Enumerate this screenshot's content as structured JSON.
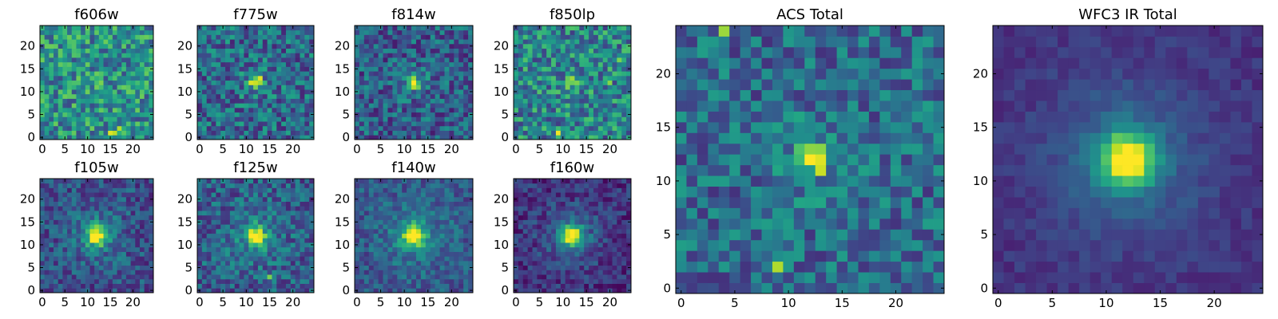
{
  "figure": {
    "colormap": "viridis"
  },
  "chart_data": [
    {
      "type": "heatmap",
      "title": "f606w",
      "grid_size": 25,
      "xticks": [
        0,
        5,
        10,
        15,
        20
      ],
      "yticks": [
        0,
        5,
        10,
        15,
        20
      ],
      "xlim": [
        -0.5,
        24.5
      ],
      "ylim": [
        -0.5,
        24.5
      ],
      "seed": 11,
      "noise": 0.55,
      "base": 0.5,
      "peak": [
        12,
        12
      ],
      "peak_amp": 0.05,
      "sigma": 1.0,
      "hot_pixels": [
        [
          15,
          1,
          0.95
        ],
        [
          16,
          1,
          0.9
        ],
        [
          17,
          2,
          0.88
        ],
        [
          13,
          12,
          0.8
        ]
      ]
    },
    {
      "type": "heatmap",
      "title": "f775w",
      "grid_size": 25,
      "xticks": [
        0,
        5,
        10,
        15,
        20
      ],
      "yticks": [
        0,
        5,
        10,
        15,
        20
      ],
      "xlim": [
        -0.5,
        24.5
      ],
      "ylim": [
        -0.5,
        24.5
      ],
      "seed": 23,
      "noise": 0.5,
      "base": 0.35,
      "peak": [
        12,
        12
      ],
      "peak_amp": 0.55,
      "sigma": 0.8,
      "hot_pixels": [
        [
          13,
          13,
          0.95
        ],
        [
          12,
          12,
          0.92
        ],
        [
          11,
          12,
          0.85
        ]
      ]
    },
    {
      "type": "heatmap",
      "title": "f814w",
      "grid_size": 25,
      "xticks": [
        0,
        5,
        10,
        15,
        20
      ],
      "yticks": [
        0,
        5,
        10,
        15,
        20
      ],
      "xlim": [
        -0.5,
        24.5
      ],
      "ylim": [
        -0.5,
        24.5
      ],
      "seed": 37,
      "noise": 0.45,
      "base": 0.3,
      "peak": [
        12,
        12
      ],
      "peak_amp": 0.65,
      "sigma": 0.8,
      "hot_pixels": [
        [
          12,
          12,
          0.97
        ],
        [
          12,
          11,
          0.88
        ],
        [
          12,
          13,
          0.85
        ]
      ]
    },
    {
      "type": "heatmap",
      "title": "f850lp",
      "grid_size": 25,
      "xticks": [
        0,
        5,
        10,
        15,
        20
      ],
      "yticks": [
        0,
        5,
        10,
        15,
        20
      ],
      "xlim": [
        -0.5,
        24.5
      ],
      "ylim": [
        -0.5,
        24.5
      ],
      "seed": 41,
      "noise": 0.55,
      "base": 0.45,
      "peak": [
        12,
        12
      ],
      "peak_amp": 0.15,
      "sigma": 1.0,
      "hot_pixels": [
        [
          9,
          1,
          0.98
        ],
        [
          12,
          13,
          0.85
        ],
        [
          20,
          12,
          0.82
        ],
        [
          22,
          17,
          0.8
        ],
        [
          13,
          12,
          0.8
        ]
      ]
    },
    {
      "type": "heatmap",
      "title": "f105w",
      "grid_size": 25,
      "xticks": [
        0,
        5,
        10,
        15,
        20
      ],
      "yticks": [
        0,
        5,
        10,
        15,
        20
      ],
      "xlim": [
        -0.5,
        24.5
      ],
      "ylim": [
        -0.5,
        24.5
      ],
      "seed": 53,
      "noise": 0.35,
      "base": 0.25,
      "peak": [
        12,
        12
      ],
      "peak_amp": 0.75,
      "sigma": 1.4,
      "hot_pixels": [
        [
          12,
          11,
          0.95
        ],
        [
          12,
          12,
          0.9
        ]
      ]
    },
    {
      "type": "heatmap",
      "title": "f125w",
      "grid_size": 25,
      "xticks": [
        0,
        5,
        10,
        15,
        20
      ],
      "yticks": [
        0,
        5,
        10,
        15,
        20
      ],
      "xlim": [
        -0.5,
        24.5
      ],
      "ylim": [
        -0.5,
        24.5
      ],
      "seed": 67,
      "noise": 0.4,
      "base": 0.3,
      "peak": [
        12,
        12
      ],
      "peak_amp": 0.65,
      "sigma": 1.4,
      "hot_pixels": [
        [
          13,
          13,
          0.95
        ],
        [
          12,
          12,
          0.88
        ],
        [
          15,
          3,
          0.8
        ]
      ]
    },
    {
      "type": "heatmap",
      "title": "f140w",
      "grid_size": 25,
      "xticks": [
        0,
        5,
        10,
        15,
        20
      ],
      "yticks": [
        0,
        5,
        10,
        15,
        20
      ],
      "xlim": [
        -0.5,
        24.5
      ],
      "ylim": [
        -0.5,
        24.5
      ],
      "seed": 79,
      "noise": 0.3,
      "base": 0.28,
      "peak": [
        12,
        12
      ],
      "peak_amp": 0.7,
      "sigma": 1.6,
      "hot_pixels": [
        [
          12,
          12,
          0.95
        ],
        [
          12,
          13,
          0.85
        ]
      ]
    },
    {
      "type": "heatmap",
      "title": "f160w",
      "grid_size": 25,
      "xticks": [
        0,
        5,
        10,
        15,
        20
      ],
      "yticks": [
        0,
        5,
        10,
        15,
        20
      ],
      "xlim": [
        -0.5,
        24.5
      ],
      "ylim": [
        -0.5,
        24.5
      ],
      "seed": 83,
      "noise": 0.28,
      "base": 0.15,
      "peak": [
        12,
        12
      ],
      "peak_amp": 0.85,
      "sigma": 1.5,
      "hot_pixels": [
        [
          12,
          12,
          0.97
        ],
        [
          13,
          12,
          0.9
        ]
      ]
    },
    {
      "type": "heatmap",
      "title": "ACS Total",
      "grid_size": 25,
      "xticks": [
        0,
        5,
        10,
        15,
        20
      ],
      "yticks": [
        0,
        5,
        10,
        15,
        20
      ],
      "xlim": [
        -0.5,
        24.5
      ],
      "ylim": [
        -0.5,
        24.5
      ],
      "seed": 97,
      "noise": 0.42,
      "base": 0.35,
      "peak": [
        12,
        12
      ],
      "peak_amp": 0.45,
      "sigma": 0.9,
      "hot_pixels": [
        [
          12,
          12,
          0.97
        ],
        [
          13,
          12,
          0.95
        ],
        [
          13,
          11,
          0.92
        ],
        [
          13,
          13,
          0.82
        ],
        [
          12,
          13,
          0.78
        ],
        [
          4,
          24,
          0.85
        ],
        [
          9,
          2,
          0.88
        ]
      ]
    },
    {
      "type": "heatmap",
      "title": "WFC3 IR Total",
      "grid_size": 25,
      "xticks": [
        0,
        5,
        10,
        15,
        20
      ],
      "yticks": [
        0,
        5,
        10,
        15,
        20
      ],
      "xlim": [
        -0.5,
        24.5
      ],
      "ylim": [
        -0.5,
        24.5
      ],
      "seed": 101,
      "noise": 0.12,
      "base": 0.15,
      "peak": [
        12,
        12
      ],
      "peak_amp": 0.85,
      "sigma": 1.7,
      "hot_pixels": [
        [
          12,
          12,
          0.98
        ],
        [
          12,
          11,
          0.95
        ],
        [
          11,
          12,
          0.82
        ]
      ]
    }
  ]
}
